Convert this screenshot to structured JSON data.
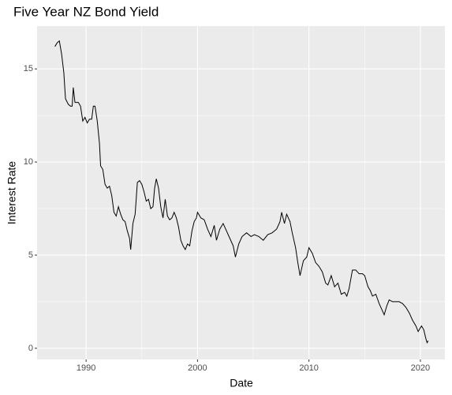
{
  "chart_data": {
    "type": "line",
    "title": "Five Year NZ Bond Yield",
    "x_label": "Date",
    "y_label": "Interest Rate",
    "x": [
      1987.2,
      1987.4,
      1987.6,
      1987.8,
      1988.0,
      1988.15,
      1988.4,
      1988.6,
      1988.75,
      1988.85,
      1989.0,
      1989.3,
      1989.5,
      1989.7,
      1989.9,
      1990.1,
      1990.3,
      1990.5,
      1990.65,
      1990.8,
      1991.0,
      1991.2,
      1991.3,
      1991.5,
      1991.7,
      1991.9,
      1992.1,
      1992.3,
      1992.5,
      1992.7,
      1992.9,
      1993.1,
      1993.3,
      1993.5,
      1993.7,
      1993.9,
      1994.0,
      1994.2,
      1994.4,
      1994.6,
      1994.8,
      1995.0,
      1995.2,
      1995.4,
      1995.6,
      1995.8,
      1996.0,
      1996.15,
      1996.3,
      1996.5,
      1996.7,
      1996.9,
      1997.1,
      1997.3,
      1997.5,
      1997.7,
      1997.9,
      1998.1,
      1998.3,
      1998.5,
      1998.7,
      1998.9,
      1999.1,
      1999.3,
      1999.5,
      1999.7,
      1999.9,
      2000.0,
      2000.3,
      2000.6,
      2000.9,
      2001.2,
      2001.5,
      2001.7,
      2002.0,
      2002.3,
      2002.6,
      2002.9,
      2003.2,
      2003.4,
      2003.7,
      2004.0,
      2004.4,
      2004.8,
      2005.1,
      2005.5,
      2005.9,
      2006.3,
      2006.7,
      2007.1,
      2007.4,
      2007.55,
      2007.8,
      2008.0,
      2008.3,
      2008.5,
      2008.8,
      2009.0,
      2009.2,
      2009.5,
      2009.8,
      2010.0,
      2010.3,
      2010.6,
      2010.9,
      2011.2,
      2011.5,
      2011.7,
      2012.0,
      2012.3,
      2012.6,
      2012.9,
      2013.2,
      2013.4,
      2013.6,
      2013.9,
      2014.2,
      2014.5,
      2014.8,
      2015.0,
      2015.3,
      2015.5,
      2015.7,
      2016.0,
      2016.3,
      2016.6,
      2016.75,
      2017.0,
      2017.2,
      2017.5,
      2017.8,
      2018.1,
      2018.4,
      2018.7,
      2019.0,
      2019.3,
      2019.6,
      2019.8,
      2020.1,
      2020.3,
      2020.5,
      2020.6,
      2020.7
    ],
    "values": [
      16.2,
      16.4,
      16.5,
      15.8,
      14.8,
      13.4,
      13.1,
      13.0,
      13.0,
      14.0,
      13.2,
      13.2,
      13.0,
      12.2,
      12.4,
      12.1,
      12.3,
      12.3,
      13.0,
      13.0,
      12.2,
      11.0,
      9.8,
      9.6,
      8.8,
      8.6,
      8.7,
      8.2,
      7.3,
      7.1,
      7.6,
      7.2,
      6.9,
      6.8,
      6.3,
      5.9,
      5.3,
      6.7,
      7.2,
      8.9,
      9.0,
      8.8,
      8.4,
      7.9,
      8.0,
      7.5,
      7.6,
      8.6,
      9.1,
      8.6,
      7.6,
      7.0,
      8.0,
      7.1,
      6.9,
      7.0,
      7.3,
      7.0,
      6.5,
      5.8,
      5.5,
      5.3,
      5.6,
      5.5,
      6.3,
      6.8,
      7.0,
      7.3,
      7.0,
      6.9,
      6.4,
      6.0,
      6.6,
      5.8,
      6.4,
      6.7,
      6.3,
      5.9,
      5.5,
      4.9,
      5.6,
      6.0,
      6.2,
      6.0,
      6.1,
      6.0,
      5.8,
      6.1,
      6.2,
      6.4,
      6.8,
      7.3,
      6.7,
      7.2,
      6.8,
      6.2,
      5.4,
      4.6,
      3.9,
      4.7,
      4.9,
      5.4,
      5.1,
      4.6,
      4.4,
      4.1,
      3.5,
      3.4,
      3.9,
      3.3,
      3.5,
      2.9,
      3.0,
      2.8,
      3.2,
      4.2,
      4.2,
      4.0,
      4.0,
      3.9,
      3.3,
      3.1,
      2.8,
      2.9,
      2.4,
      2.0,
      1.8,
      2.3,
      2.6,
      2.5,
      2.5,
      2.5,
      2.4,
      2.2,
      1.9,
      1.5,
      1.2,
      0.9,
      1.2,
      1.0,
      0.5,
      0.3,
      0.4
    ],
    "color": "#000000",
    "xlim": [
      1985.6,
      2022.2
    ],
    "ylim": [
      -0.6,
      17.3
    ],
    "xticks": [
      1990,
      2000,
      2010,
      2020
    ],
    "yticks": [
      0,
      5,
      10,
      15
    ],
    "grid": true
  }
}
